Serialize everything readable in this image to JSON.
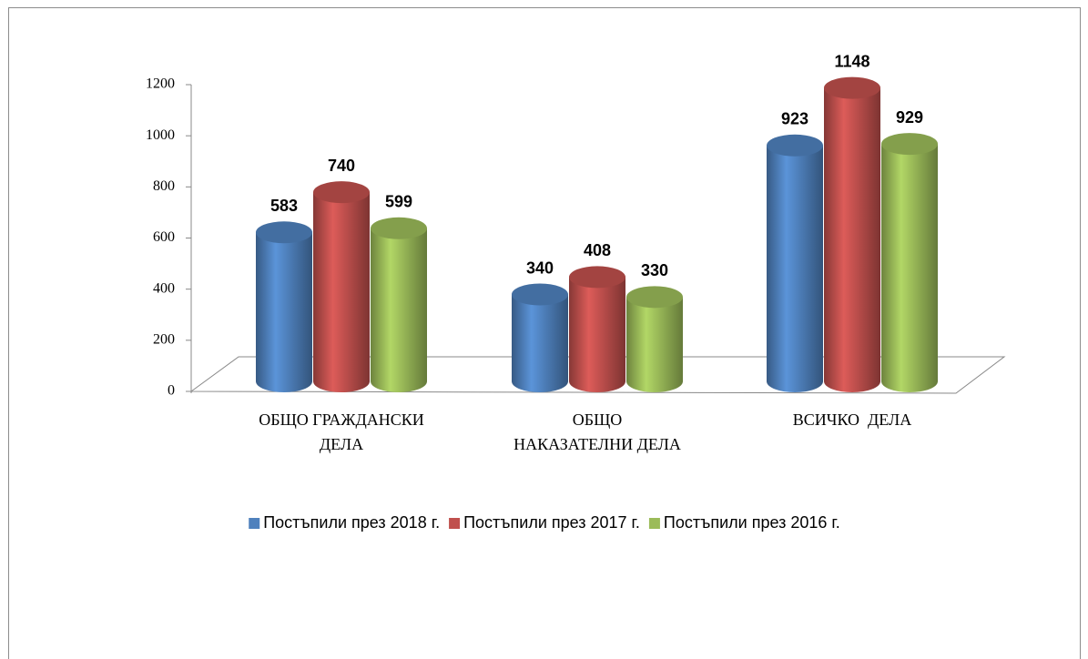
{
  "chart_data": {
    "type": "cylinder-bar",
    "categories": [
      [
        "ОБЩО ГРАЖДАНСКИ",
        "ДЕЛА"
      ],
      [
        "ОБЩО",
        "НАКАЗАТЕЛНИ ДЕЛА"
      ],
      [
        "ВСИЧКО  ДЕЛА"
      ]
    ],
    "series": [
      {
        "name": "Постъпили през 2018 г.",
        "color": "#4f81bd",
        "values": [
          583,
          340,
          923
        ]
      },
      {
        "name": "Постъпили през 2017 г.",
        "color": "#c0504d",
        "values": [
          740,
          408,
          1148
        ]
      },
      {
        "name": "Постъпили през 2016 г.",
        "color": "#9bbb59",
        "values": [
          599,
          330,
          929
        ]
      }
    ],
    "ylim": [
      0,
      1200
    ],
    "yticks": [
      0,
      200,
      400,
      600,
      800,
      1000,
      1200
    ],
    "legend": "bottom"
  }
}
